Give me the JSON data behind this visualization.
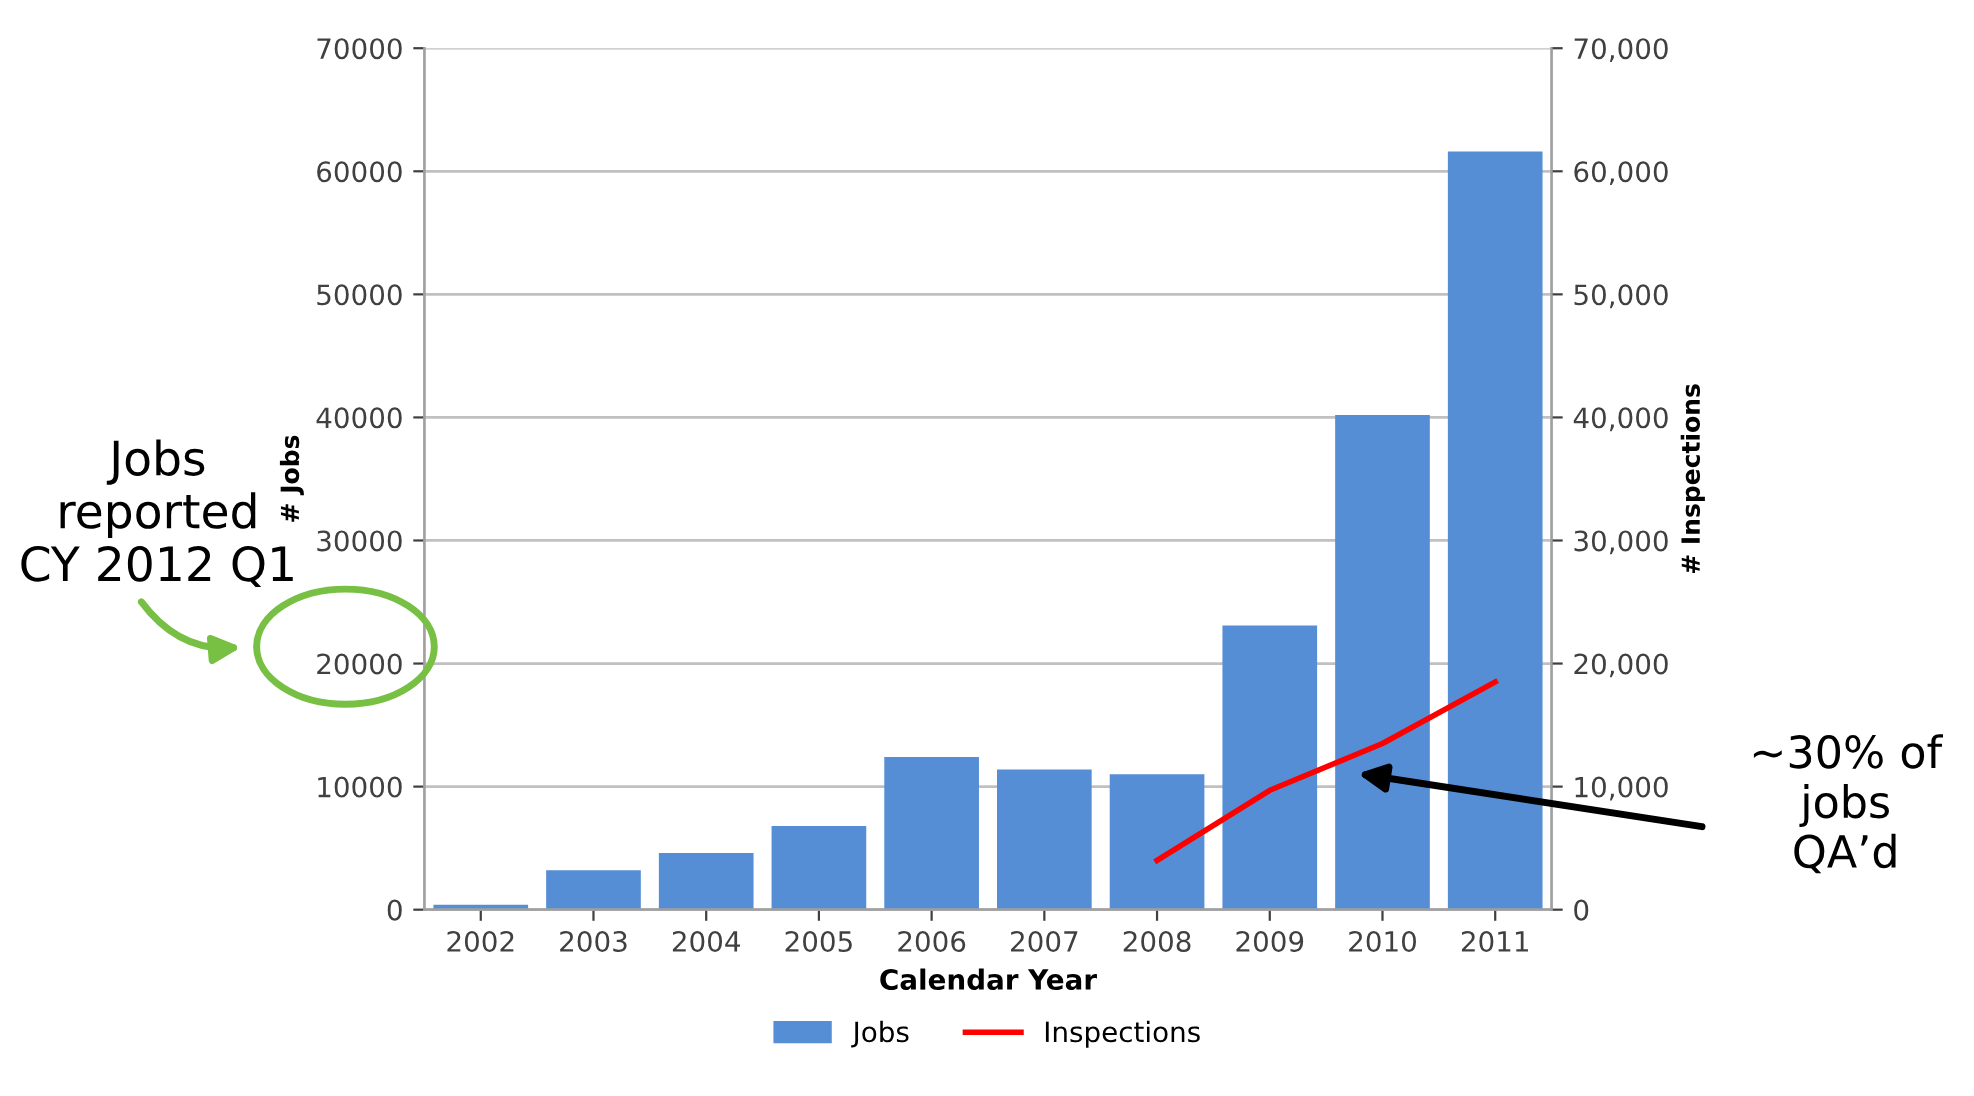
{
  "chart_data": {
    "type": "bar",
    "categories": [
      "2002",
      "2003",
      "2004",
      "2005",
      "2006",
      "2007",
      "2008",
      "2009",
      "2010",
      "2011"
    ],
    "xlabel": "Calendar Year",
    "ylabel": "# Jobs",
    "y2label": "# Inspections",
    "series": [
      {
        "name": "Jobs",
        "color": "#558ed5",
        "values": [
          400,
          3200,
          4600,
          6800,
          12400,
          11400,
          11000,
          23100,
          40200,
          61600
        ]
      },
      {
        "name": "Inspections",
        "color": "#ff0000",
        "type": "line",
        "axis": "y2",
        "values": [
          null,
          null,
          null,
          null,
          null,
          null,
          4000,
          9700,
          13500,
          18500
        ]
      }
    ],
    "ylim": [
      0,
      70000
    ],
    "yticks": [
      0,
      10000,
      20000,
      30000,
      40000,
      50000,
      60000,
      70000
    ],
    "y2lim": [
      0,
      70000
    ],
    "y2ticks": [
      {
        "value": 0,
        "label": "0"
      },
      {
        "value": 10000,
        "label": "10,000"
      },
      {
        "value": 20000,
        "label": "20,000"
      },
      {
        "value": 30000,
        "label": "30,000"
      },
      {
        "value": 40000,
        "label": "40,000"
      },
      {
        "value": 50000,
        "label": "50,000"
      },
      {
        "value": 60000,
        "label": "60,000"
      },
      {
        "value": 70000,
        "label": "70,000"
      }
    ],
    "grid": "y",
    "legend": "bottom",
    "annotations": [
      "Jobs\nreported\nCY 2012 Q1",
      "~30% of\njobs\nQA’d"
    ]
  }
}
